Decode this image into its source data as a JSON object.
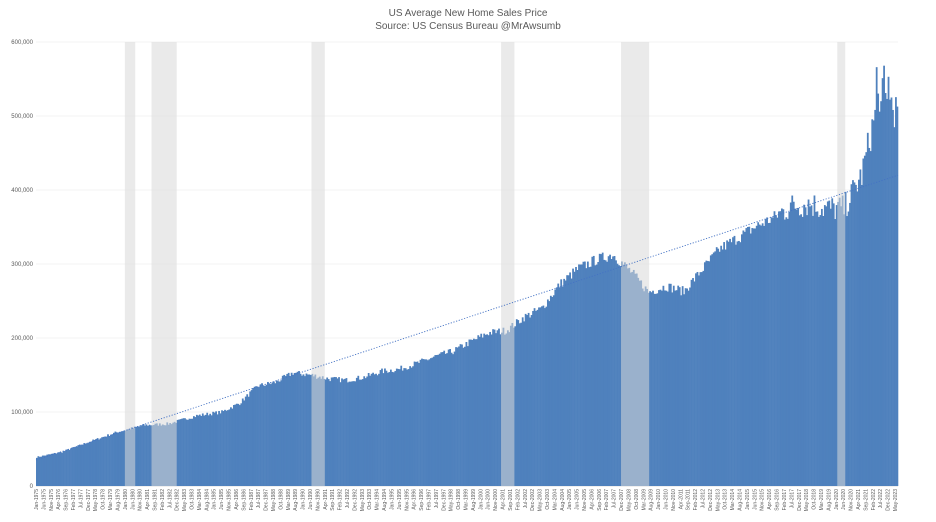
{
  "chart_data": {
    "type": "bar",
    "title": "US Average New Home Sales Price",
    "subtitle": "Source: US Census Bureau  @MrAwsumb",
    "xlabel": "",
    "ylabel": "",
    "ylim": [
      0,
      600000
    ],
    "y_ticks": [
      0,
      100000,
      200000,
      300000,
      400000,
      500000,
      600000
    ],
    "y_tick_labels": [
      "0",
      "100,000",
      "200,000",
      "300,000",
      "400,000",
      "500,000",
      "600,000"
    ],
    "x_range": [
      "1975-01",
      "2023-06"
    ],
    "x_tick_labels": [
      "Jan-1975",
      "Jun-1975",
      "Nov-1975",
      "Apr-1976",
      "Sep-1976",
      "Feb-1977",
      "Jul-1977",
      "Dec-1977",
      "May-1978",
      "Oct-1978",
      "Mar-1979",
      "Aug-1979",
      "Jan-1980",
      "Jun-1980",
      "Nov-1980",
      "Apr-1981",
      "Sep-1981",
      "Feb-1982",
      "Jul-1982",
      "Dec-1982",
      "May-1983",
      "Oct-1983",
      "Mar-1984",
      "Aug-1984",
      "Jan-1985",
      "Jun-1985",
      "Nov-1985",
      "Apr-1986",
      "Sep-1986",
      "Feb-1987",
      "Jul-1987",
      "Dec-1987",
      "May-1988",
      "Oct-1988",
      "Mar-1989",
      "Aug-1989",
      "Jan-1990",
      "Jun-1990",
      "Nov-1990",
      "Apr-1991",
      "Sep-1991",
      "Feb-1992",
      "Jul-1992",
      "Dec-1992",
      "May-1993",
      "Oct-1993",
      "Mar-1994",
      "Aug-1994",
      "Jan-1995",
      "Jun-1995",
      "Nov-1995",
      "Apr-1996",
      "Sep-1996",
      "Feb-1997",
      "Jul-1997",
      "Dec-1997",
      "May-1998",
      "Oct-1998",
      "Mar-1999",
      "Aug-1999",
      "Jan-2000",
      "Jun-2000",
      "Nov-2000",
      "Apr-2001",
      "Sep-2001",
      "Feb-2002",
      "Jul-2002",
      "Dec-2002",
      "May-2003",
      "Oct-2003",
      "Mar-2004",
      "Aug-2004",
      "Jan-2005",
      "Jun-2005",
      "Nov-2005",
      "Apr-2006",
      "Sep-2006",
      "Feb-2007",
      "Jul-2007",
      "Dec-2007",
      "May-2008",
      "Oct-2008",
      "Mar-2009",
      "Aug-2009",
      "Jan-2010",
      "Jun-2010",
      "Nov-2010",
      "Apr-2011",
      "Sep-2011",
      "Feb-2012",
      "Jul-2012",
      "Dec-2012",
      "May-2013",
      "Oct-2013",
      "Mar-2014",
      "Aug-2014",
      "Jan-2015",
      "Jun-2015",
      "Nov-2015",
      "Apr-2016",
      "Sep-2016",
      "Feb-2017",
      "Jul-2017",
      "Dec-2017",
      "May-2018",
      "Oct-2018",
      "Mar-2019",
      "Aug-2019",
      "Jan-2020",
      "Jun-2020",
      "Nov-2020",
      "Apr-2021",
      "Sep-2021",
      "Feb-2022",
      "Jul-2022",
      "Dec-2022",
      "May-2023"
    ],
    "series": [
      {
        "values_monthly_keypoints": [
          [
            "1975-01",
            39000
          ],
          [
            "1976-06",
            46000
          ],
          [
            "1978-01",
            60000
          ],
          [
            "1979-06",
            72000
          ],
          [
            "1981-01",
            82000
          ],
          [
            "1982-06",
            84000
          ],
          [
            "1984-01",
            95000
          ],
          [
            "1985-06",
            100000
          ],
          [
            "1986-06",
            112000
          ],
          [
            "1987-06",
            135000
          ],
          [
            "1988-06",
            140000
          ],
          [
            "1989-06",
            153000
          ],
          [
            "1990-06",
            150000
          ],
          [
            "1991-06",
            145000
          ],
          [
            "1992-06",
            143000
          ],
          [
            "1993-06",
            147000
          ],
          [
            "1994-06",
            155000
          ],
          [
            "1995-06",
            158000
          ],
          [
            "1996-06",
            166000
          ],
          [
            "1997-06",
            175000
          ],
          [
            "1998-06",
            182000
          ],
          [
            "1999-06",
            195000
          ],
          [
            "2000-06",
            207000
          ],
          [
            "2001-06",
            210000
          ],
          [
            "2002-06",
            228000
          ],
          [
            "2003-06",
            240000
          ],
          [
            "2004-06",
            272000
          ],
          [
            "2005-06",
            293000
          ],
          [
            "2006-06",
            305000
          ],
          [
            "2007-06",
            313000
          ],
          [
            "2008-06",
            290000
          ],
          [
            "2009-06",
            262000
          ],
          [
            "2010-06",
            270000
          ],
          [
            "2011-06",
            263000
          ],
          [
            "2012-06",
            292000
          ],
          [
            "2013-06",
            320000
          ],
          [
            "2014-06",
            335000
          ],
          [
            "2015-06",
            350000
          ],
          [
            "2016-06",
            362000
          ],
          [
            "2017-06",
            378000
          ],
          [
            "2018-06",
            382000
          ],
          [
            "2019-06",
            375000
          ],
          [
            "2020-06",
            375000
          ],
          [
            "2021-06",
            420000
          ],
          [
            "2022-06",
            530000
          ],
          [
            "2023-06",
            505000
          ]
        ],
        "color": "#4F81BD"
      }
    ],
    "spikes": [
      [
        "2022-04",
        566000
      ],
      [
        "2022-09",
        568000
      ],
      [
        "2022-12",
        553000
      ],
      [
        "2022-07",
        520000
      ],
      [
        "2023-02",
        525000
      ]
    ],
    "recessions": [
      [
        "1980-01",
        "1980-07"
      ],
      [
        "1981-07",
        "1982-11"
      ],
      [
        "1990-07",
        "1991-03"
      ],
      [
        "2001-03",
        "2001-11"
      ],
      [
        "2007-12",
        "2009-06"
      ],
      [
        "2020-02",
        "2020-04"
      ]
    ],
    "recession_color": "#D9D9D9",
    "trendline": {
      "style": "dotted",
      "color": "#4472C4",
      "start": [
        "1975-01",
        35000
      ],
      "end": [
        "2023-06",
        420000
      ]
    },
    "grid": true,
    "legend": "none"
  }
}
